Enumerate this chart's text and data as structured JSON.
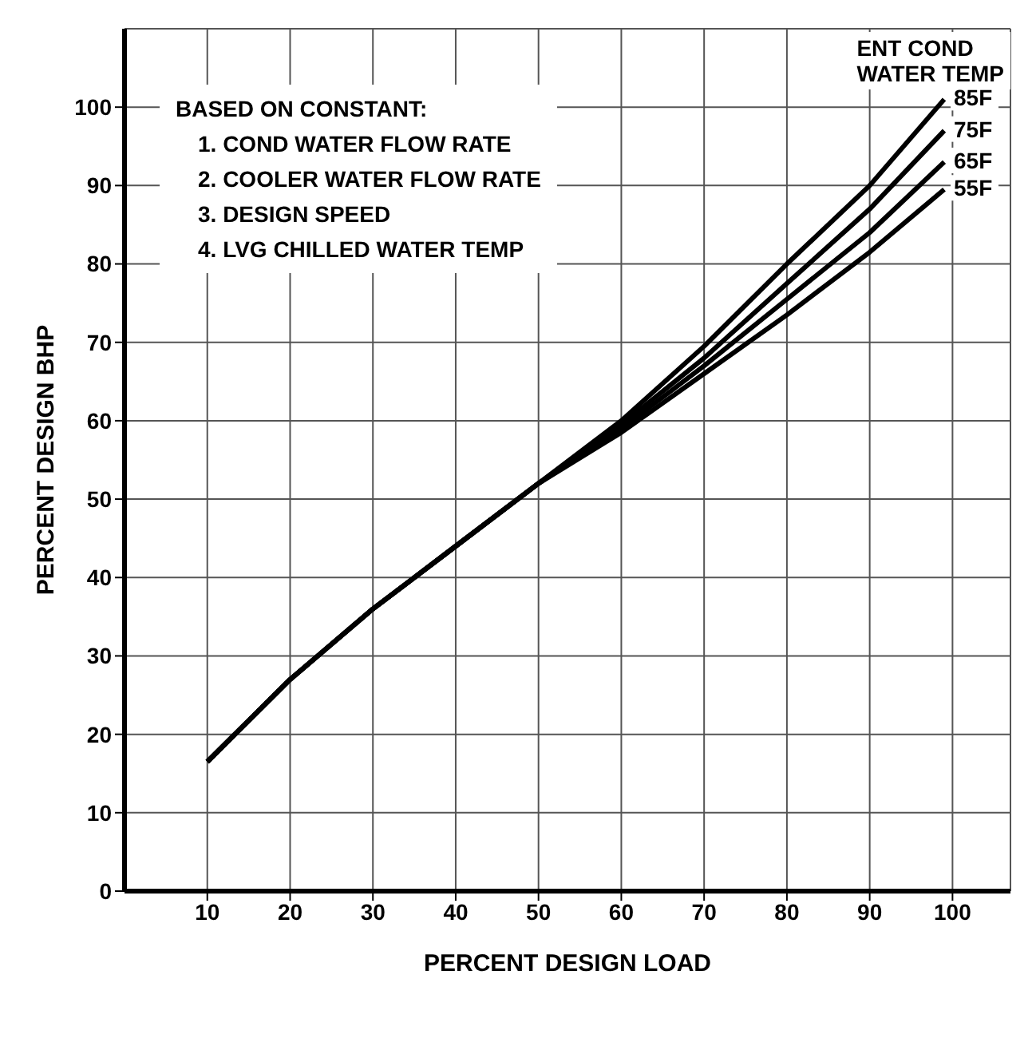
{
  "chart_data": {
    "type": "line",
    "xlabel": "PERCENT DESIGN LOAD",
    "ylabel": "PERCENT DESIGN BHP",
    "legend_title": "ENT COND\nWATER TEMP",
    "annotations": [
      "BASED ON CONSTANT:",
      "1. COND WATER FLOW RATE",
      "2. COOLER WATER FLOW RATE",
      "3. DESIGN SPEED",
      "4. LVG CHILLED WATER TEMP"
    ],
    "x": [
      10,
      20,
      30,
      40,
      50,
      60,
      70,
      80,
      90,
      99
    ],
    "series": [
      {
        "name": "85F",
        "color": "#000000",
        "values": [
          16.5,
          27,
          36,
          44,
          52,
          60,
          69.5,
          80,
          90,
          101
        ]
      },
      {
        "name": "75F",
        "color": "#000000",
        "values": [
          16.5,
          27,
          36,
          44,
          52,
          59.5,
          68,
          77.5,
          87,
          97
        ]
      },
      {
        "name": "65F",
        "color": "#000000",
        "values": [
          16.5,
          27,
          36,
          44,
          52,
          59,
          67,
          75.5,
          84,
          93
        ]
      },
      {
        "name": "55F",
        "color": "#000000",
        "values": [
          16.5,
          27,
          36,
          44,
          52,
          58.5,
          66,
          73.5,
          81.5,
          89.5
        ]
      }
    ],
    "xlim": [
      0,
      107
    ],
    "ylim": [
      0,
      110
    ],
    "xticks": [
      10,
      20,
      30,
      40,
      50,
      60,
      70,
      80,
      90,
      100
    ],
    "yticks": [
      0,
      10,
      20,
      30,
      40,
      50,
      60,
      70,
      80,
      90,
      100
    ],
    "grid": true,
    "marker": "none",
    "line_style": "solid"
  }
}
